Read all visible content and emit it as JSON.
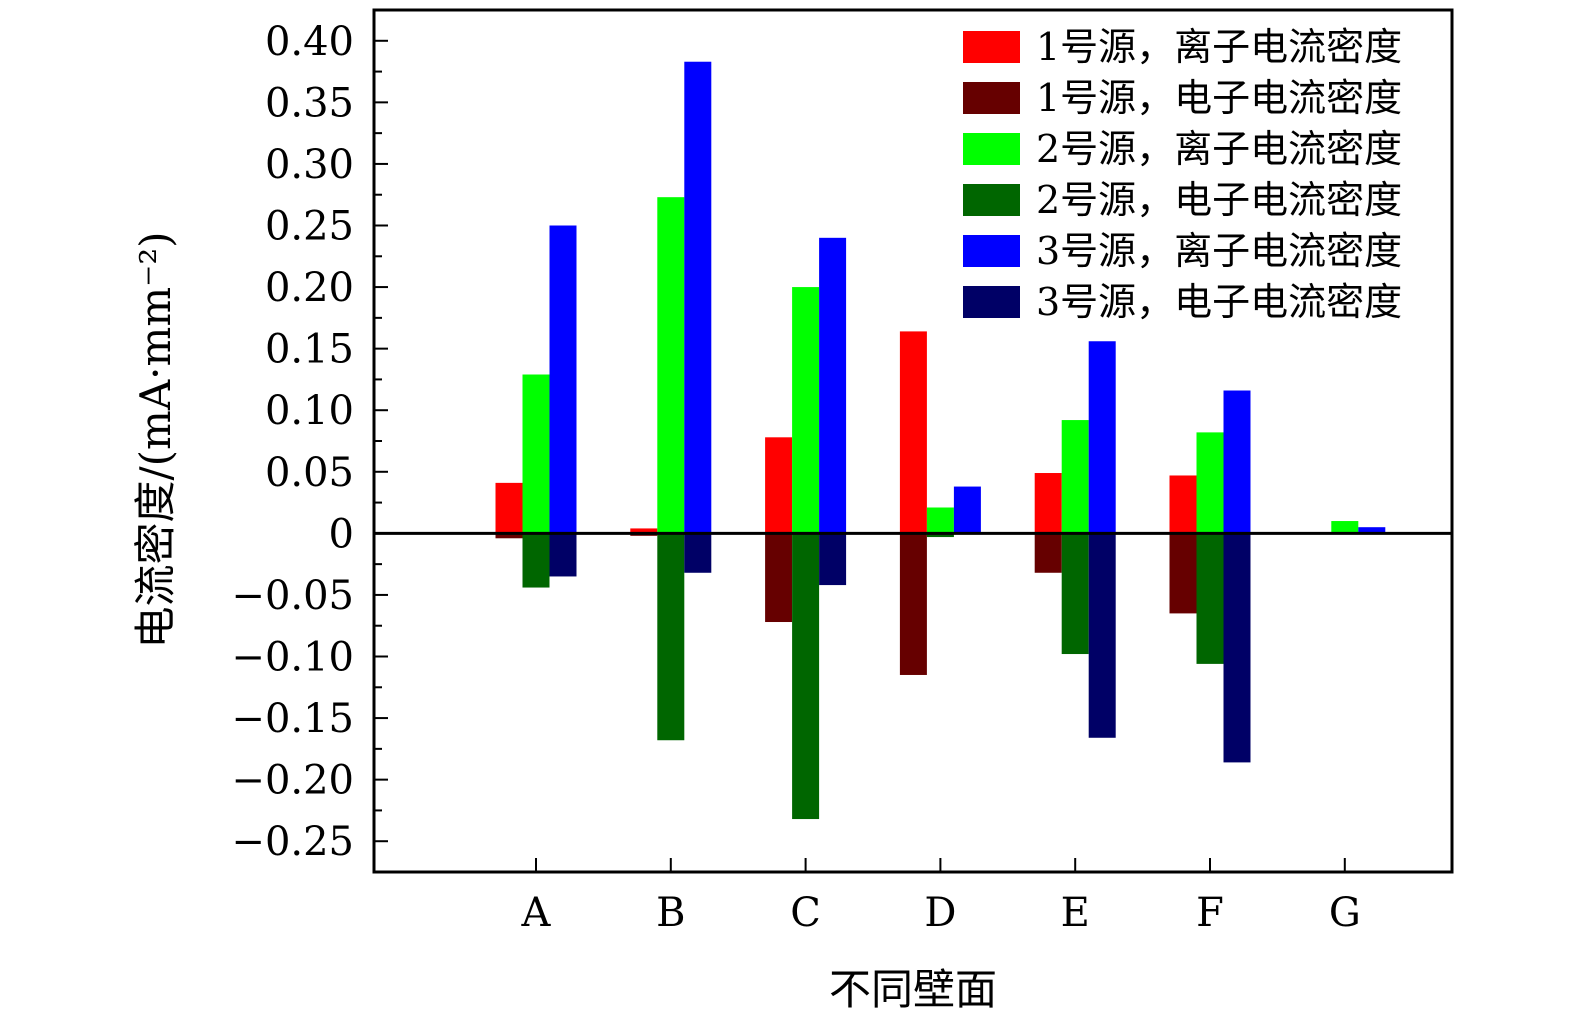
{
  "chart_data": {
    "type": "bar",
    "title": "",
    "xlabel": "不同壁面",
    "ylabel": "电流密度/(mA·mm⁻²)",
    "ylim": [
      -0.275,
      0.425
    ],
    "yticks": [
      0.4,
      0.35,
      0.3,
      0.25,
      0.2,
      0.15,
      0.1,
      0.05,
      0,
      -0.05,
      -0.1,
      -0.15,
      -0.2,
      -0.25
    ],
    "ytick_labels": [
      "0.40",
      "0.35",
      "0.30",
      "0.25",
      "0.20",
      "0.15",
      "0.10",
      "0.05",
      "0",
      "−0.05",
      "−0.10",
      "−0.15",
      "−0.20",
      "−0.25"
    ],
    "categories": [
      "A",
      "B",
      "C",
      "D",
      "E",
      "F",
      "G"
    ],
    "grid": false,
    "legend_position": "top-right",
    "pairs": [
      {
        "ion_series": 0,
        "electron_series": 1
      },
      {
        "ion_series": 2,
        "electron_series": 3
      },
      {
        "ion_series": 4,
        "electron_series": 5
      }
    ],
    "series": [
      {
        "name": "1号源，离子电流密度",
        "color": "#ff0000",
        "values": [
          0.041,
          0.004,
          0.078,
          0.164,
          0.049,
          0.047,
          0.001
        ]
      },
      {
        "name": "1号源，电子电流密度",
        "color": "#660000",
        "values": [
          -0.004,
          -0.002,
          -0.072,
          -0.115,
          -0.032,
          -0.065,
          0
        ]
      },
      {
        "name": "2号源，离子电流密度",
        "color": "#00ff00",
        "values": [
          0.129,
          0.273,
          0.2,
          0.021,
          0.092,
          0.082,
          0.01
        ]
      },
      {
        "name": "2号源，电子电流密度",
        "color": "#006600",
        "values": [
          -0.044,
          -0.168,
          -0.232,
          -0.003,
          -0.098,
          -0.106,
          0
        ]
      },
      {
        "name": "3号源，离子电流密度",
        "color": "#0000ff",
        "values": [
          0.25,
          0.383,
          0.24,
          0.038,
          0.156,
          0.116,
          0.005
        ]
      },
      {
        "name": "3号源，电子电流密度",
        "color": "#000066",
        "values": [
          -0.035,
          -0.032,
          -0.042,
          0,
          -0.166,
          -0.186,
          0
        ]
      }
    ]
  }
}
